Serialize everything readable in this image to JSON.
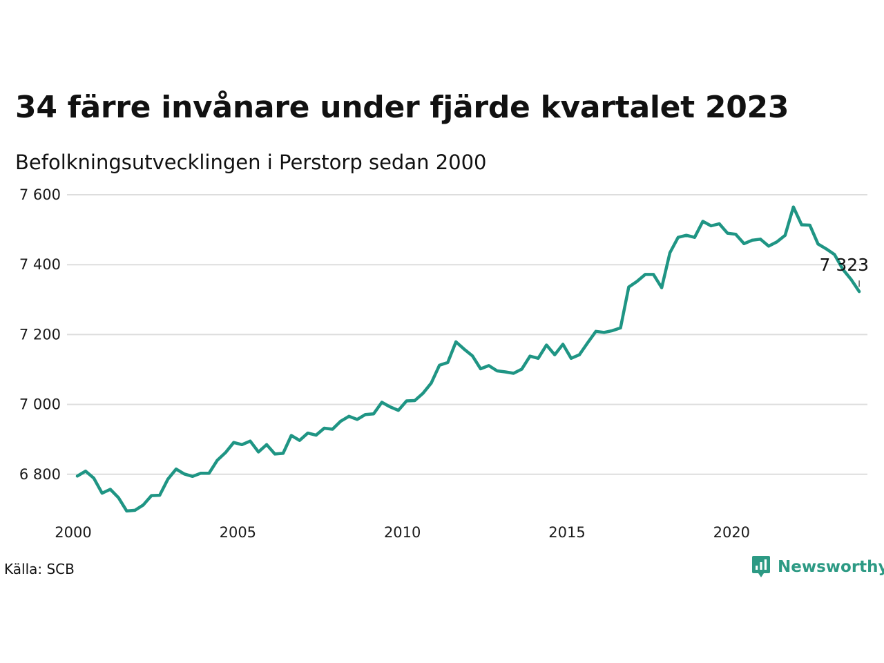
{
  "title": "34 färre invånare under fjärde kvartalet 2023",
  "subtitle": "Befolkningsutvecklingen i Perstorp sedan 2000",
  "source": "Källa: SCB",
  "brand": {
    "name": "Newsworthy",
    "icon": "newsworthy-logo-icon",
    "color": "#2d9a84"
  },
  "colors": {
    "line": "#1f9584",
    "grid": "#dddddd"
  },
  "chart_data": {
    "type": "line",
    "title": "34 färre invånare under fjärde kvartalet 2023",
    "subtitle": "Befolkningsutvecklingen i Perstorp sedan 2000",
    "xlabel": "",
    "ylabel": "",
    "x_ticks": [
      2000,
      2005,
      2010,
      2015,
      2020
    ],
    "x_tick_labels": [
      "2000",
      "2005",
      "2010",
      "2015",
      "2020"
    ],
    "y_ticks": [
      6800,
      7000,
      7200,
      7400,
      7600
    ],
    "y_tick_labels": [
      "6 800",
      "7 000",
      "7 200",
      "7 400",
      "7 600"
    ],
    "xlim": [
      2000,
      2024
    ],
    "ylim": [
      6675,
      7600
    ],
    "grid": true,
    "legend": "none",
    "end_label": "7 323",
    "series": [
      {
        "x": [
          2000.0,
          2000.25,
          2000.5,
          2000.75,
          2001.0,
          2001.25,
          2001.5,
          2001.75,
          2002.0,
          2002.25,
          2002.5,
          2002.75,
          2003.0,
          2003.25,
          2003.5,
          2003.75,
          2004.0,
          2004.25,
          2004.5,
          2004.75,
          2005.0,
          2005.25,
          2005.5,
          2005.75,
          2006.0,
          2006.25,
          2006.5,
          2006.75,
          2007.0,
          2007.25,
          2007.5,
          2007.75,
          2008.0,
          2008.25,
          2008.5,
          2008.75,
          2009.0,
          2009.25,
          2009.5,
          2009.75,
          2010.0,
          2010.25,
          2010.5,
          2010.75,
          2011.0,
          2011.25,
          2011.5,
          2011.75,
          2012.0,
          2012.25,
          2012.5,
          2012.75,
          2013.0,
          2013.25,
          2013.5,
          2013.75,
          2014.0,
          2014.25,
          2014.5,
          2014.75,
          2015.0,
          2015.25,
          2015.5,
          2015.75,
          2016.0,
          2016.25,
          2016.5,
          2016.75,
          2017.0,
          2017.25,
          2017.5,
          2017.75,
          2018.0,
          2018.25,
          2018.5,
          2018.75,
          2019.0,
          2019.25,
          2019.5,
          2019.75,
          2020.0,
          2020.25,
          2020.5,
          2020.75,
          2021.0,
          2021.25,
          2021.5,
          2021.75,
          2022.0,
          2022.25,
          2022.5,
          2022.75,
          2023.0,
          2023.25,
          2023.5,
          2023.75
        ],
        "values": [
          6795,
          6809,
          6789,
          6746,
          6757,
          6733,
          6695,
          6697,
          6712,
          6739,
          6740,
          6786,
          6815,
          6801,
          6794,
          6803,
          6803,
          6840,
          6862,
          6891,
          6885,
          6895,
          6864,
          6885,
          6858,
          6860,
          6911,
          6897,
          6918,
          6912,
          6932,
          6929,
          6952,
          6966,
          6957,
          6971,
          6973,
          7006,
          6993,
          6983,
          7010,
          7011,
          7032,
          7061,
          7112,
          7120,
          7179,
          7158,
          7139,
          7102,
          7111,
          7096,
          7093,
          7089,
          7101,
          7138,
          7132,
          7170,
          7142,
          7172,
          7132,
          7142,
          7176,
          7209,
          7206,
          7211,
          7219,
          7336,
          7352,
          7372,
          7372,
          7334,
          7434,
          7478,
          7484,
          7478,
          7524,
          7511,
          7517,
          7490,
          7487,
          7460,
          7470,
          7473,
          7453,
          7465,
          7484,
          7565,
          7514,
          7513,
          7459,
          7445,
          7429,
          7387,
          7358,
          7323
        ]
      }
    ]
  }
}
